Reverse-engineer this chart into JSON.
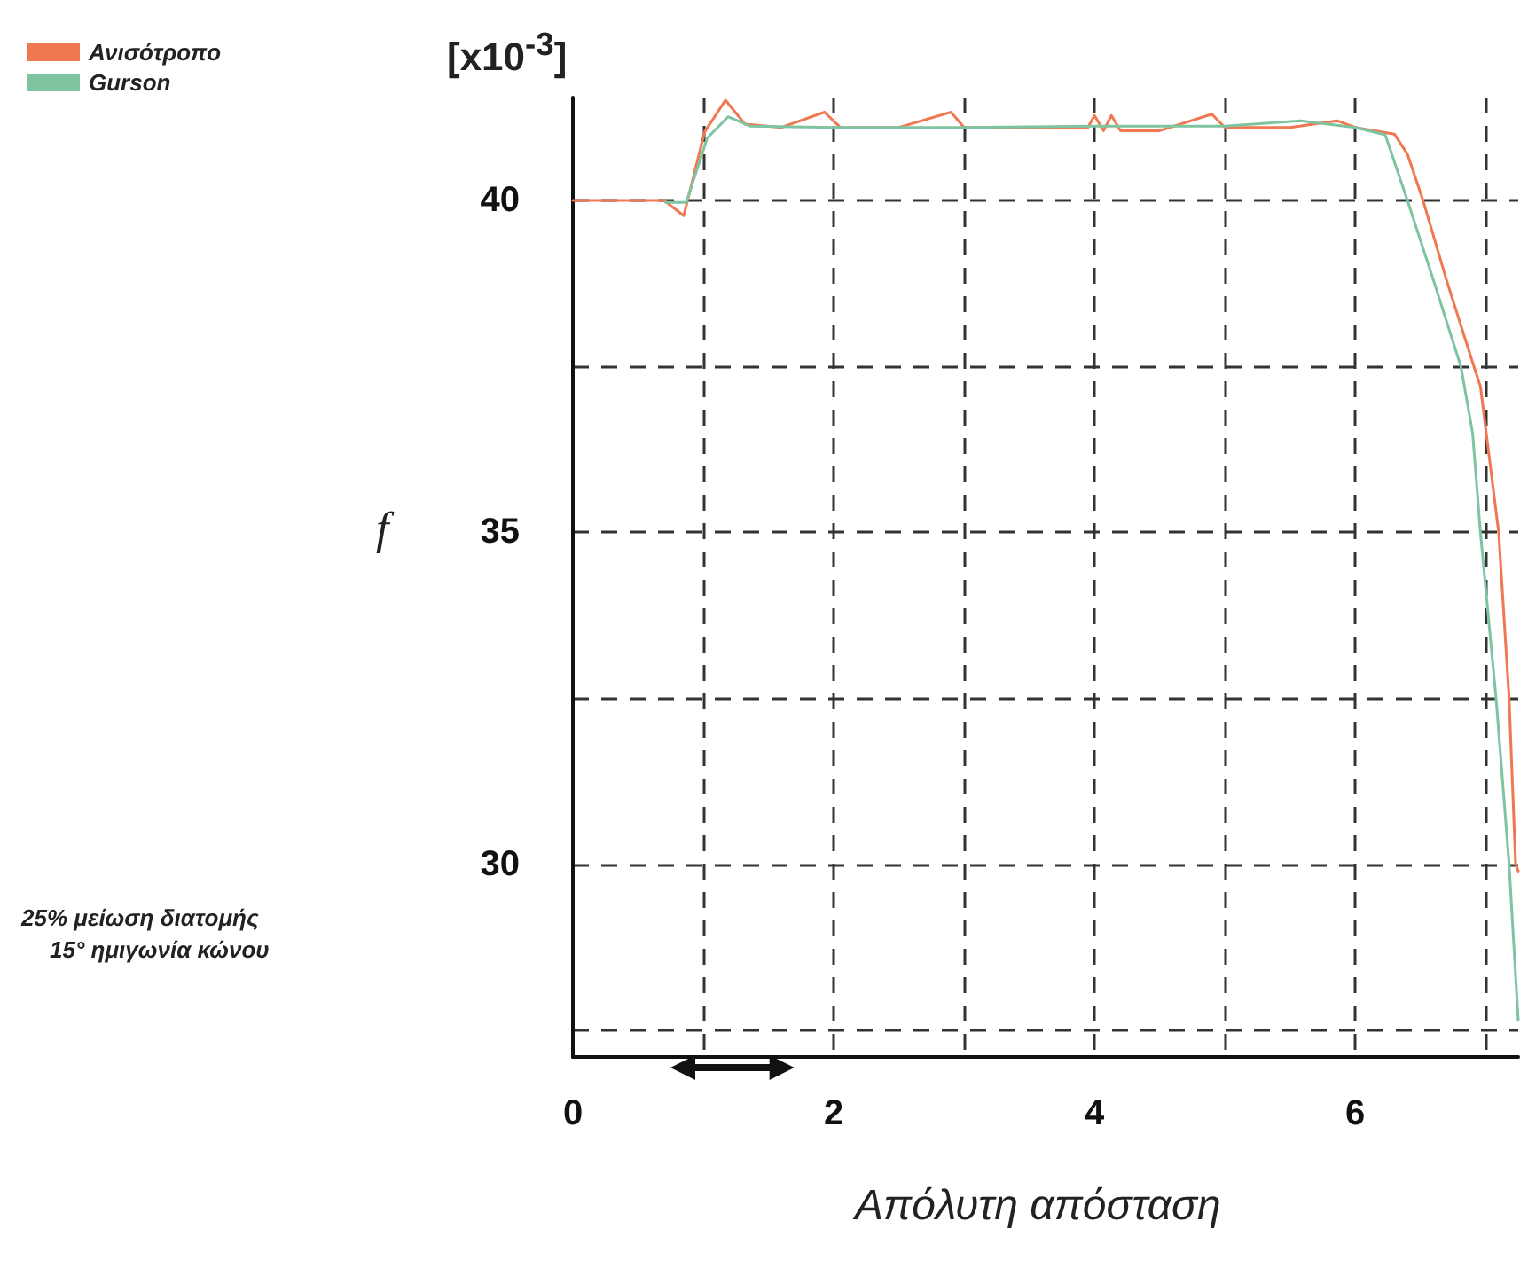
{
  "chart_data": {
    "type": "line",
    "xlabel": "Απόλυτη απόσταση",
    "ylabel": "f",
    "annotations": [
      "[x10$^{-3}$]",
      "25% μείωση διατομής",
      "15° ημιγωνία κώνου"
    ],
    "series": [
      {
        "name": "Ανισότροπο",
        "color": "#f07850",
        "x": [
          0,
          0.7,
          0.85,
          1.01,
          1.17,
          1.32,
          1.6,
          1.93,
          2.05,
          2.5,
          2.9,
          3.0,
          3.5,
          3.95,
          4.0,
          4.07,
          4.13,
          4.2,
          4.5,
          4.9,
          5.0,
          5.5,
          5.86,
          6.0,
          6.3,
          6.4,
          6.52,
          6.7,
          6.91,
          6.96,
          7.1,
          7.18,
          7.23,
          7.25
        ],
        "values": [
          40,
          40,
          39.77,
          41.03,
          41.51,
          41.15,
          41.1,
          41.33,
          41.1,
          41.1,
          41.33,
          41.1,
          41.1,
          41.1,
          41.28,
          41.05,
          41.28,
          41.05,
          41.05,
          41.3,
          41.1,
          41.1,
          41.2,
          41.1,
          41.0,
          40.7,
          40.0,
          38.8,
          37.5,
          37.2,
          35.0,
          32.5,
          30.0,
          29.9
        ]
      },
      {
        "name": "Gurson",
        "color": "#7fc4a0",
        "x": [
          0.71,
          0.87,
          1.03,
          1.19,
          1.36,
          2,
          3,
          4,
          5,
          5.58,
          6.0,
          6.23,
          6.4,
          6.6,
          6.81,
          6.9,
          6.96,
          7.08,
          7.18,
          7.25
        ],
        "values": [
          39.97,
          39.97,
          40.94,
          41.26,
          41.12,
          41.1,
          41.1,
          41.12,
          41.12,
          41.2,
          41.1,
          40.99,
          40.0,
          38.8,
          37.5,
          36.5,
          35.0,
          32.5,
          30.0,
          27.65
        ]
      }
    ],
    "xlim": [
      0,
      7.25
    ],
    "ylim": [
      27.1,
      41.55
    ],
    "xticks": [
      0,
      {
        "value": 1,
        "label": null
      },
      2,
      {
        "value": 3,
        "label": null
      },
      4,
      {
        "value": 5,
        "label": null
      },
      6,
      {
        "value": 7,
        "label": null
      }
    ],
    "yticks": [
      {
        "value": 27.5,
        "label": null
      },
      30,
      {
        "value": 32.5,
        "label": null
      },
      35,
      {
        "value": 37.5,
        "label": null
      },
      40
    ],
    "grid": true,
    "legend": "top left",
    "marker": "none",
    "line_style": "solid"
  }
}
